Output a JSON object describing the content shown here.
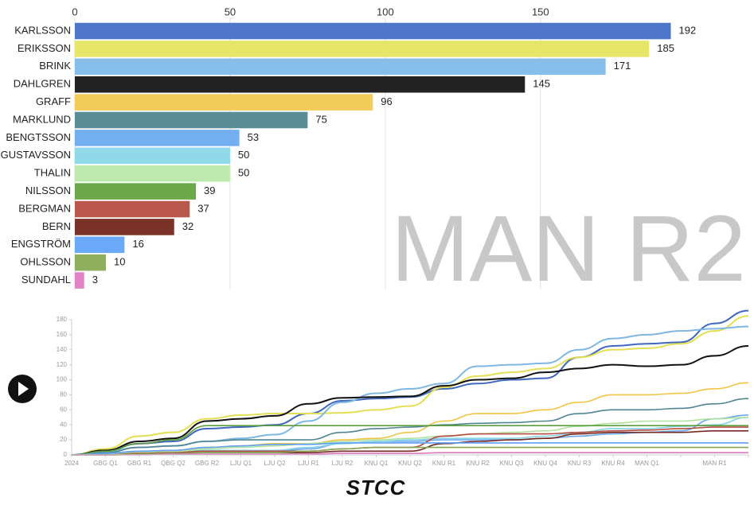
{
  "chart_data": [
    {
      "type": "bar",
      "orientation": "horizontal",
      "annotation": "MAN R2",
      "categories": [
        "KARLSSON",
        "ERIKSSON",
        "BRINK",
        "DAHLGREN",
        "GRAFF",
        "MARKLUND",
        "BENGTSSON",
        "GUSTAVSSON",
        "THALIN",
        "NILSSON",
        "BERGMAN",
        "BERN",
        "ENGSTRÖM",
        "OHLSSON",
        "SUNDAHL"
      ],
      "values": [
        192,
        185,
        171,
        145,
        96,
        75,
        53,
        50,
        50,
        39,
        37,
        32,
        16,
        10,
        3
      ],
      "colors": [
        "#4f75c9",
        "#e6e567",
        "#87bfea",
        "#222222",
        "#f2cb58",
        "#5a8d97",
        "#73aef0",
        "#8fd9e8",
        "#bde8ae",
        "#6aa84a",
        "#b9574a",
        "#7a3128",
        "#6aa9f7",
        "#8eb05e",
        "#e083c4"
      ],
      "xlim": [
        0,
        217
      ],
      "xticks": [
        0,
        50,
        100,
        150
      ],
      "grid": true
    },
    {
      "type": "line",
      "categories": [
        "2024",
        "GBG Q1",
        "GBG R1",
        "QBG Q2",
        "GBG R2",
        "LJU Q1",
        "LJU Q2",
        "LJU R1",
        "LJU R2",
        "KNU Q1",
        "KNU Q2",
        "KNU R1",
        "KNU R2",
        "KNU Q3",
        "KNU Q4",
        "KNU R3",
        "KNU R4",
        "MAN Q1",
        null,
        "MAN R1",
        null
      ],
      "ylim": [
        0,
        180
      ],
      "yticks": [
        0,
        20,
        40,
        60,
        80,
        100,
        120,
        140,
        160,
        180
      ],
      "series": [
        {
          "name": "KARLSSON",
          "color": "#3f68bd",
          "values": [
            0,
            5,
            15,
            18,
            35,
            37,
            40,
            55,
            72,
            75,
            77,
            88,
            95,
            100,
            102,
            130,
            145,
            148,
            150,
            175,
            192
          ]
        },
        {
          "name": "ERIKSSON",
          "color": "#e3df55",
          "values": [
            0,
            8,
            25,
            30,
            48,
            53,
            55,
            55,
            56,
            60,
            65,
            90,
            105,
            110,
            115,
            130,
            140,
            142,
            148,
            165,
            185
          ]
        },
        {
          "name": "BRINK",
          "color": "#7db7e2",
          "values": [
            0,
            4,
            10,
            12,
            18,
            22,
            27,
            45,
            70,
            82,
            88,
            95,
            118,
            120,
            122,
            140,
            155,
            160,
            165,
            168,
            171
          ]
        },
        {
          "name": "DAHLGREN",
          "color": "#111111",
          "values": [
            0,
            6,
            18,
            22,
            45,
            48,
            52,
            68,
            76,
            77,
            78,
            92,
            100,
            102,
            110,
            115,
            120,
            118,
            120,
            132,
            145
          ]
        },
        {
          "name": "GRAFF",
          "color": "#f0c445",
          "values": [
            0,
            2,
            5,
            6,
            10,
            12,
            15,
            15,
            20,
            22,
            30,
            45,
            55,
            55,
            60,
            70,
            80,
            80,
            82,
            88,
            96
          ]
        },
        {
          "name": "MARKLUND",
          "color": "#4f8590",
          "values": [
            0,
            3,
            10,
            12,
            18,
            20,
            20,
            20,
            30,
            35,
            37,
            40,
            42,
            43,
            45,
            55,
            60,
            60,
            62,
            68,
            75
          ]
        },
        {
          "name": "BENGTSSON",
          "color": "#6aa7ee",
          "values": [
            0,
            1,
            3,
            4,
            5,
            5,
            5,
            8,
            15,
            18,
            18,
            20,
            20,
            20,
            22,
            25,
            28,
            30,
            32,
            48,
            53
          ]
        },
        {
          "name": "GUSTAVSSON",
          "color": "#86d3e4",
          "values": [
            0,
            1,
            3,
            4,
            6,
            6,
            6,
            10,
            15,
            18,
            20,
            22,
            22,
            22,
            25,
            30,
            35,
            35,
            38,
            40,
            50
          ]
        },
        {
          "name": "THALIN",
          "color": "#b0e29e",
          "values": [
            0,
            1,
            3,
            4,
            8,
            10,
            12,
            15,
            18,
            20,
            22,
            25,
            28,
            30,
            32,
            38,
            42,
            45,
            45,
            48,
            50
          ]
        },
        {
          "name": "NILSSON",
          "color": "#5c9c3c",
          "values": [
            0,
            5,
            15,
            20,
            39,
            39,
            39,
            39,
            39,
            39,
            39,
            39,
            39,
            39,
            39,
            39,
            39,
            39,
            39,
            39,
            39
          ]
        },
        {
          "name": "BERGMAN",
          "color": "#b34c3f",
          "values": [
            0,
            0,
            2,
            3,
            5,
            5,
            5,
            5,
            8,
            10,
            10,
            25,
            28,
            28,
            28,
            30,
            32,
            33,
            35,
            37,
            37
          ]
        },
        {
          "name": "BERN",
          "color": "#742a22",
          "values": [
            0,
            0,
            1,
            2,
            3,
            3,
            3,
            3,
            5,
            5,
            5,
            15,
            18,
            20,
            22,
            28,
            30,
            30,
            30,
            32,
            32
          ]
        },
        {
          "name": "ENGSTRÖM",
          "color": "#5d9ff2",
          "values": [
            0,
            2,
            5,
            6,
            10,
            12,
            14,
            14,
            16,
            16,
            16,
            16,
            16,
            16,
            16,
            16,
            16,
            16,
            16,
            16,
            16
          ]
        },
        {
          "name": "OHLSSON",
          "color": "#85a854",
          "values": [
            0,
            0,
            1,
            2,
            3,
            3,
            3,
            5,
            8,
            10,
            10,
            10,
            10,
            10,
            10,
            10,
            10,
            10,
            10,
            10,
            10
          ]
        },
        {
          "name": "SUNDAHL",
          "color": "#dc78bf",
          "values": [
            0,
            0,
            0,
            1,
            1,
            1,
            1,
            1,
            2,
            2,
            2,
            3,
            3,
            3,
            3,
            3,
            3,
            3,
            3,
            3,
            3
          ]
        }
      ]
    }
  ],
  "logo": "STCC"
}
